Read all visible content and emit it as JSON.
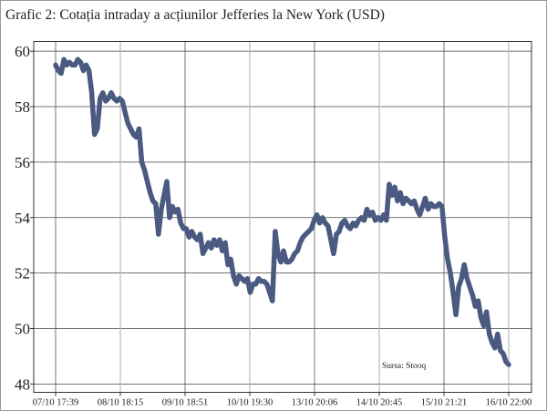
{
  "chart_data": {
    "type": "line",
    "title": "Grafic 2: Cotația intraday a acțiunilor Jefferies la New York (USD)",
    "xlabel": "",
    "ylabel": "",
    "x_tick_labels": [
      "07/10 17:39",
      "08/10 18:15",
      "09/10 18:51",
      "10/10 19:30",
      "13/10 20:06",
      "14/10 20:45",
      "15/10 21:21",
      "16/10 22:00"
    ],
    "y_ticks": [
      48,
      50,
      52,
      54,
      56,
      58,
      60
    ],
    "ylim": [
      47.7,
      60.35
    ],
    "grid": true,
    "source": "Sursa: Stooq",
    "line_color": "#4a5a80",
    "series": [
      {
        "values": [
          59.5,
          59.3,
          59.2,
          59.7,
          59.5,
          59.6,
          59.5,
          59.5,
          59.7,
          59.6,
          59.3,
          59.5,
          59.3,
          58.5,
          57.0,
          57.2,
          58.3,
          58.5,
          58.2,
          58.3,
          58.5,
          58.3,
          58.2,
          58.3,
          58.2,
          57.8,
          57.4,
          57.2,
          57.0,
          56.9,
          57.2,
          56.0,
          55.7,
          55.3,
          54.9,
          54.6,
          54.5,
          53.4,
          54.3,
          54.8,
          55.3,
          54.0,
          54.4,
          54.2,
          54.3,
          53.8,
          53.6,
          53.6,
          53.3,
          53.5,
          53.3,
          53.2,
          53.4,
          52.7,
          52.9,
          53.1,
          52.9,
          53.2,
          53.0,
          53.2,
          52.8,
          53.1,
          52.3,
          52.5,
          51.9,
          51.6,
          51.9,
          51.8,
          51.7,
          51.8,
          51.3,
          51.6,
          51.6,
          51.8,
          51.7,
          51.7,
          51.6,
          51.3,
          51.0,
          53.5,
          52.7,
          52.4,
          52.8,
          52.4,
          52.4,
          52.5,
          52.7,
          52.8,
          53.1,
          53.3,
          53.4,
          53.5,
          53.6,
          53.9,
          54.1,
          53.8,
          54.0,
          53.8,
          53.7,
          53.2,
          52.7,
          53.4,
          53.5,
          53.8,
          53.9,
          53.7,
          53.6,
          53.8,
          53.7,
          53.9,
          54.0,
          53.9,
          54.3,
          54.1,
          54.2,
          53.9,
          54.0,
          53.9,
          54.1,
          53.9,
          55.2,
          54.8,
          55.1,
          54.6,
          54.9,
          54.5,
          54.7,
          54.6,
          54.5,
          54.6,
          54.3,
          54.1,
          54.4,
          54.7,
          54.3,
          54.5,
          54.4,
          54.4,
          54.5,
          54.4,
          53.3,
          52.5,
          52.0,
          51.3,
          50.5,
          51.5,
          51.8,
          52.3,
          51.8,
          51.5,
          51.2,
          50.8,
          51.0,
          50.4,
          50.1,
          50.6,
          49.8,
          49.5,
          49.3,
          49.8,
          49.2,
          49.1,
          48.8,
          48.7
        ]
      }
    ]
  }
}
